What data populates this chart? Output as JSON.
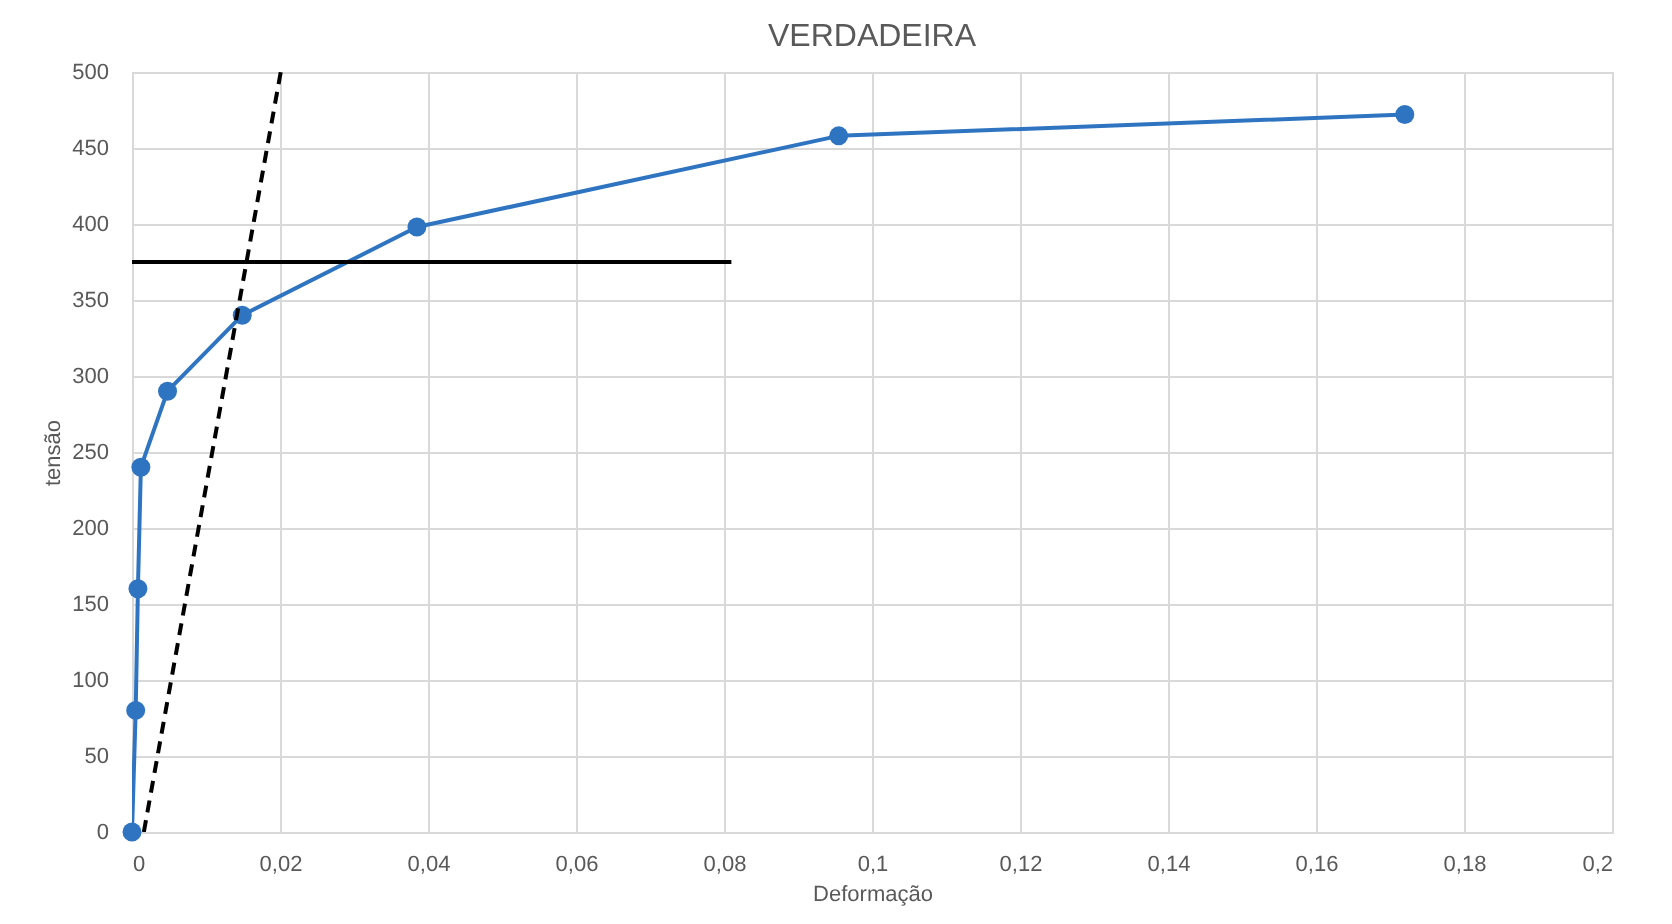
{
  "chart_data": {
    "type": "line",
    "title": "VERDADEIRA",
    "xlabel": "Deformação",
    "ylabel": "tensão",
    "xlim": [
      0,
      0.2
    ],
    "ylim": [
      0,
      500
    ],
    "xticks": [
      0,
      {
        "value": 0.02,
        "label": "0,02"
      },
      {
        "value": 0.04,
        "label": "0,04"
      },
      {
        "value": 0.06,
        "label": "0,06"
      },
      {
        "value": 0.08,
        "label": "0,08"
      },
      {
        "value": 0.1,
        "label": "0,1"
      },
      {
        "value": 0.12,
        "label": "0,12"
      },
      {
        "value": 0.14,
        "label": "0,14"
      },
      {
        "value": 0.16,
        "label": "0,16"
      },
      {
        "value": 0.18,
        "label": "0,18"
      },
      {
        "value": 0.2,
        "label": "0,2"
      }
    ],
    "yticks": [
      0,
      50,
      100,
      150,
      200,
      250,
      300,
      350,
      400,
      450,
      500
    ],
    "grid": true,
    "legend": false,
    "series": [
      {
        "type": "line",
        "color": "#2f74c0",
        "marker": "circle",
        "line_style": "solid",
        "x": [
          0,
          0.0005,
          0.0008,
          0.0012,
          0.0048,
          0.0149,
          0.0385,
          0.0955,
          0.172
        ],
        "values": [
          0,
          80,
          160,
          240,
          290,
          340,
          398,
          458,
          472
        ]
      },
      {
        "type": "line",
        "color": "#000000",
        "marker": "none",
        "line_style": "solid",
        "x": [
          0,
          0.081
        ],
        "values": [
          375,
          375
        ]
      },
      {
        "type": "line",
        "color": "#000000",
        "marker": "none",
        "line_style": "dashed",
        "x": [
          0.0016,
          0.0201
        ],
        "values": [
          0,
          500
        ]
      }
    ]
  }
}
